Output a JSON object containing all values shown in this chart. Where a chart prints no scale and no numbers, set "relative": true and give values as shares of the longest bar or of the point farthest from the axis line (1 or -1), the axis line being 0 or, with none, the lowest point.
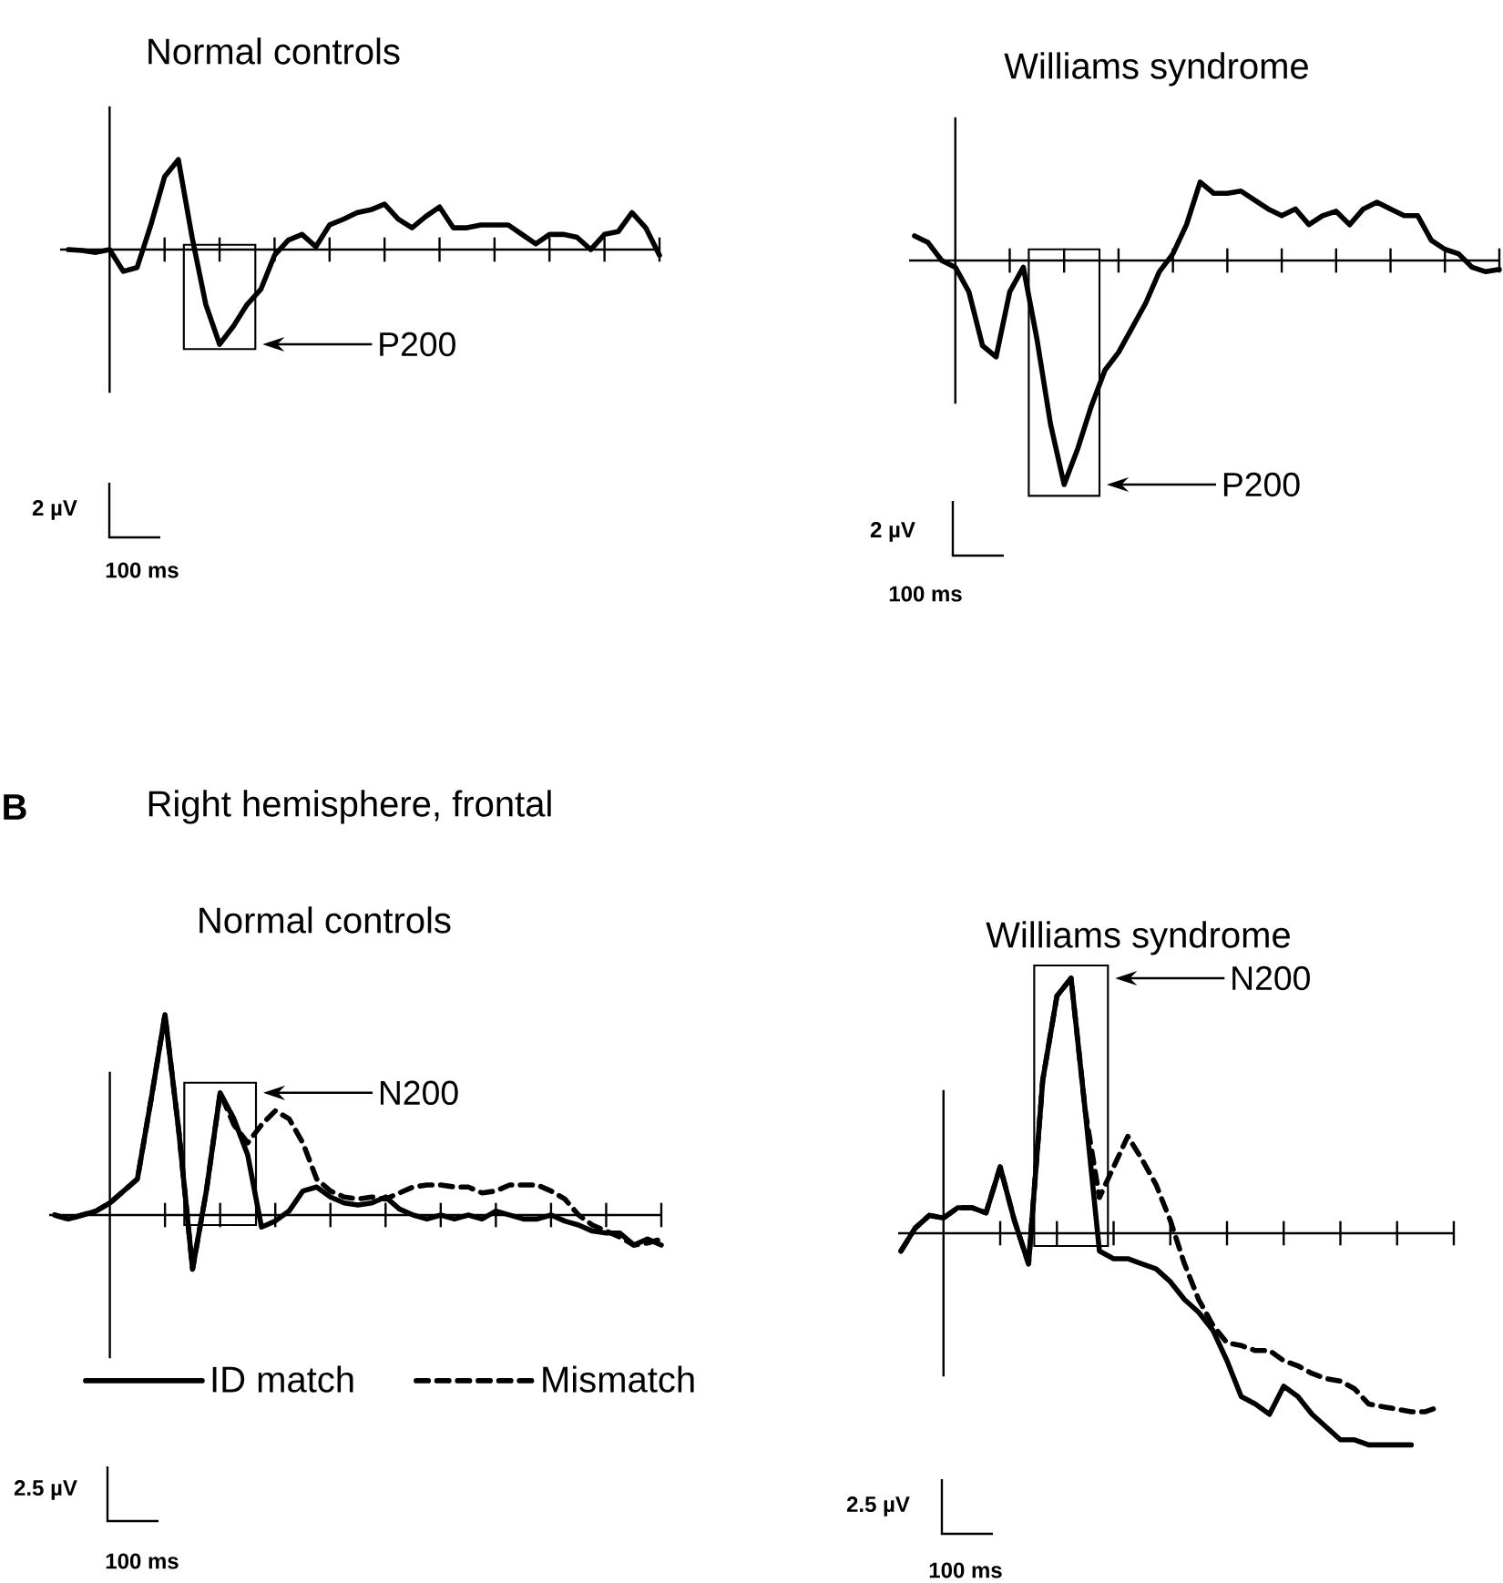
{
  "chart_data": [
    {
      "type": "line",
      "title": "Normal controls",
      "relative": true,
      "categories": [
        null,
        null,
        null,
        null,
        null,
        null,
        null,
        null,
        null,
        null,
        null,
        null,
        null,
        null,
        null,
        null,
        null,
        null,
        null,
        null,
        null,
        null,
        null,
        null,
        null,
        null,
        null,
        null,
        null,
        null,
        null,
        null,
        null,
        null,
        null,
        null,
        null,
        null,
        null,
        null,
        null,
        null,
        null,
        null
      ],
      "series": [
        {
          "color": "#000000",
          "line_style": "solid",
          "values": [
            0,
            -0.01,
            -0.03,
            0,
            -0.23,
            -0.19,
            0.26,
            0.77,
            0.95,
            0.13,
            -0.58,
            -1.0,
            -0.81,
            -0.58,
            -0.42,
            -0.06,
            0.1,
            0.16,
            0.03,
            0.26,
            0.32,
            0.39,
            0.42,
            0.48,
            0.32,
            0.23,
            0.35,
            0.45,
            0.23,
            0.23,
            0.26,
            0.26,
            0.26,
            0.16,
            0.06,
            0.16,
            0.16,
            0.13,
            0,
            0.16,
            0.19,
            0.39,
            0.23,
            -0.06
          ]
        }
      ],
      "annotations": [
        "P200",
        "2 µV",
        "100 ms"
      ]
    },
    {
      "type": "line",
      "title": "Williams syndrome",
      "relative": true,
      "categories": [
        null,
        null,
        null,
        null,
        null,
        null,
        null,
        null,
        null,
        null,
        null,
        null,
        null,
        null,
        null,
        null,
        null,
        null,
        null,
        null,
        null,
        null,
        null,
        null,
        null,
        null,
        null,
        null,
        null,
        null,
        null,
        null,
        null,
        null,
        null,
        null,
        null,
        null,
        null,
        null,
        null,
        null,
        null,
        null
      ],
      "series": [
        {
          "color": "#000000",
          "line_style": "solid",
          "values": [
            0.11,
            0.08,
            0,
            -0.03,
            -0.14,
            -0.38,
            -0.43,
            -0.14,
            -0.03,
            -0.35,
            -0.73,
            -1.0,
            -0.84,
            -0.65,
            -0.49,
            -0.41,
            -0.3,
            -0.19,
            -0.05,
            0.03,
            0.16,
            0.35,
            0.3,
            0.3,
            0.31,
            0.27,
            0.23,
            0.2,
            0.23,
            0.16,
            0.2,
            0.22,
            0.16,
            0.23,
            0.26,
            0.23,
            0.2,
            0.2,
            0.09,
            0.05,
            0.03,
            -0.03,
            -0.05,
            -0.04
          ]
        }
      ],
      "annotations": [
        "P200",
        "2 µV",
        "100 ms"
      ]
    },
    {
      "type": "line",
      "title": "Normal controls",
      "subtitle": "Right hemisphere, frontal",
      "relative": true,
      "legend": "bottom",
      "categories": [
        null,
        null,
        null,
        null,
        null,
        null,
        null,
        null,
        null,
        null,
        null,
        null,
        null,
        null,
        null,
        null,
        null,
        null,
        null,
        null,
        null,
        null,
        null,
        null,
        null,
        null,
        null,
        null,
        null,
        null,
        null,
        null,
        null,
        null,
        null,
        null,
        null,
        null,
        null,
        null,
        null,
        null,
        null,
        null,
        null
      ],
      "series": [
        {
          "name": "ID match",
          "color": "#000000",
          "line_style": "solid",
          "values": [
            0,
            -0.02,
            0,
            0.02,
            0.06,
            0.12,
            0.18,
            0.58,
            1.0,
            0.42,
            -0.27,
            0.12,
            0.61,
            0.48,
            0.3,
            -0.06,
            -0.03,
            0.02,
            0.12,
            0.14,
            0.09,
            0.06,
            0.05,
            0.06,
            0.09,
            0.03,
            0,
            -0.02,
            0,
            -0.02,
            0,
            -0.02,
            0.02,
            0,
            -0.02,
            -0.02,
            0,
            -0.03,
            -0.05,
            -0.08,
            -0.09,
            -0.09,
            -0.15,
            -0.12,
            -0.15
          ]
        },
        {
          "name": "Mismatch",
          "color": "#000000",
          "line_style": "dashed",
          "values": [
            0,
            -0.02,
            0,
            0.02,
            0.06,
            0.12,
            0.18,
            0.58,
            1.0,
            0.42,
            -0.27,
            0.12,
            0.61,
            0.45,
            0.36,
            0.45,
            0.52,
            0.48,
            0.36,
            0.18,
            0.12,
            0.09,
            0.08,
            0.09,
            0.08,
            0.11,
            0.14,
            0.15,
            0.15,
            0.14,
            0.14,
            0.11,
            0.12,
            0.15,
            0.15,
            0.15,
            0.12,
            0.08,
            0,
            -0.05,
            -0.08,
            -0.11,
            -0.15,
            -0.14,
            -0.12
          ]
        }
      ],
      "annotations": [
        "N200",
        "2.5 µV",
        "100 ms",
        "B"
      ]
    },
    {
      "type": "line",
      "title": "Williams syndrome",
      "relative": true,
      "categories": [
        null,
        null,
        null,
        null,
        null,
        null,
        null,
        null,
        null,
        null,
        null,
        null,
        null,
        null,
        null,
        null,
        null,
        null,
        null,
        null,
        null,
        null,
        null,
        null,
        null,
        null,
        null,
        null,
        null,
        null,
        null,
        null,
        null,
        null,
        null,
        null,
        null,
        null,
        null
      ],
      "series": [
        {
          "color": "#000000",
          "line_style": "solid",
          "values": [
            -0.07,
            0.02,
            0.07,
            0.06,
            0.1,
            0.1,
            0.08,
            0.26,
            0.05,
            -0.12,
            0.6,
            0.93,
            1.0,
            0.48,
            -0.07,
            -0.1,
            -0.1,
            -0.12,
            -0.14,
            -0.19,
            -0.26,
            -0.31,
            -0.38,
            -0.5,
            -0.64,
            -0.67,
            -0.71,
            -0.6,
            -0.64,
            -0.71,
            -0.76,
            -0.81,
            -0.81,
            -0.83,
            -0.83,
            -0.83,
            -0.83,
            null,
            null
          ]
        },
        {
          "color": "#000000",
          "line_style": "dashed",
          "values": [
            -0.07,
            0.02,
            0.07,
            0.06,
            0.1,
            0.1,
            0.08,
            0.26,
            0.05,
            -0.12,
            0.6,
            0.93,
            1.0,
            0.48,
            0.14,
            0.26,
            0.38,
            0.29,
            0.19,
            0.05,
            -0.12,
            -0.26,
            -0.36,
            -0.43,
            -0.44,
            -0.46,
            -0.46,
            -0.5,
            -0.52,
            -0.55,
            -0.57,
            -0.58,
            -0.61,
            -0.67,
            -0.68,
            -0.69,
            -0.7,
            -0.7,
            -0.68
          ]
        }
      ],
      "annotations": [
        "N200",
        "2.5 µV",
        "100 ms"
      ]
    }
  ]
}
